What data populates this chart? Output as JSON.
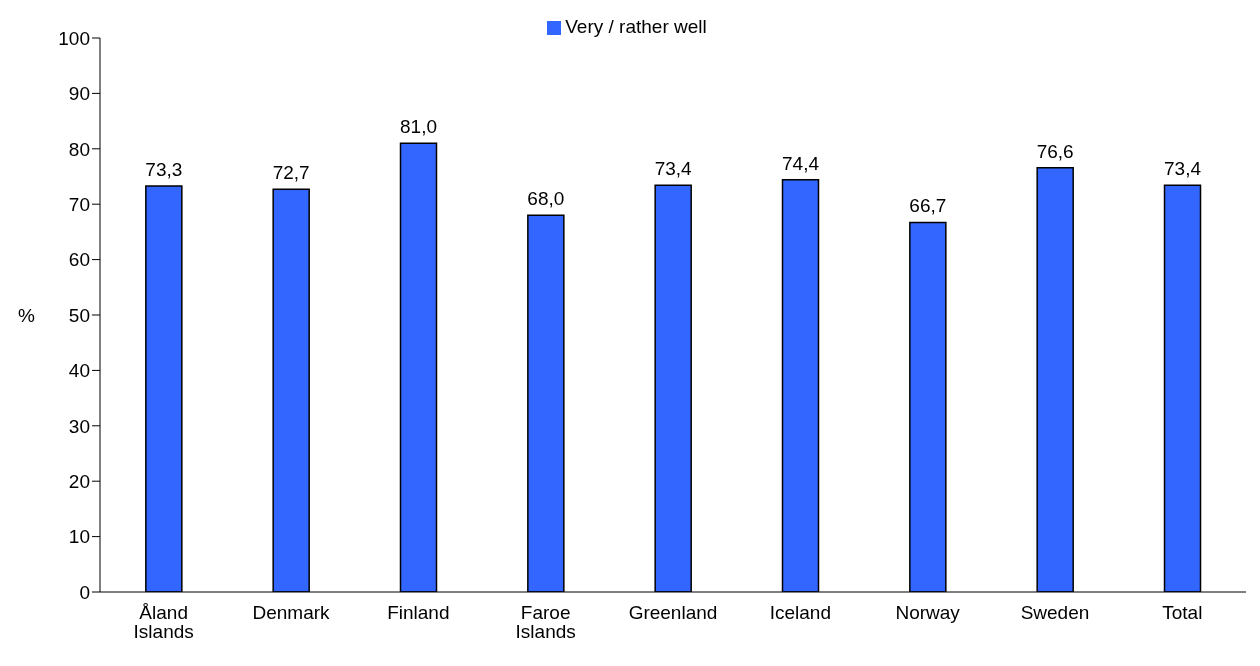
{
  "chart_data": {
    "type": "bar",
    "ylabel": "%",
    "categories": [
      "Åland Islands",
      "Denmark",
      "Finland",
      "Faroe Islands",
      "Greenland",
      "Iceland",
      "Norway",
      "Sweden",
      "Total"
    ],
    "series": [
      {
        "name": "Very / rather well",
        "color": "#3366ff",
        "values": [
          73.3,
          72.7,
          81.0,
          68.0,
          73.4,
          74.4,
          66.7,
          76.6,
          73.4
        ],
        "value_labels": [
          "73,3",
          "72,7",
          "81,0",
          "68,0",
          "73,4",
          "74,4",
          "66,7",
          "76,6",
          "73,4"
        ]
      }
    ],
    "ylim": [
      0,
      100
    ],
    "yticks": [
      0,
      10,
      20,
      30,
      40,
      50,
      60,
      70,
      80,
      90,
      100
    ],
    "grid": false,
    "legend": "top"
  }
}
